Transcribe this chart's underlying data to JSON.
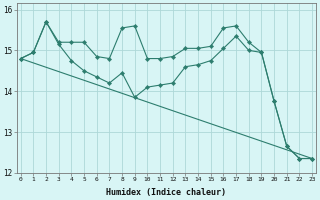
{
  "xlabel": "Humidex (Indice chaleur)",
  "bg_color": "#d8f5f5",
  "line_color": "#2d7d6e",
  "grid_color": "#aed8d8",
  "x": [
    0,
    1,
    2,
    3,
    4,
    5,
    6,
    7,
    8,
    9,
    10,
    11,
    12,
    13,
    14,
    15,
    16,
    17,
    18,
    19,
    20,
    21,
    22,
    23
  ],
  "series1": [
    14.8,
    14.95,
    15.7,
    15.2,
    15.2,
    15.2,
    14.85,
    14.8,
    15.55,
    15.6,
    14.8,
    14.8,
    14.85,
    15.05,
    15.05,
    15.1,
    15.55,
    15.6,
    15.2,
    14.95,
    13.75,
    12.65,
    12.35,
    12.35
  ],
  "series2": [
    14.8,
    14.95,
    15.7,
    15.15,
    14.75,
    14.5,
    14.35,
    14.2,
    14.45,
    13.85,
    14.1,
    14.15,
    14.2,
    14.6,
    14.65,
    14.75,
    15.05,
    15.35,
    15.0,
    14.95,
    13.75,
    12.65,
    12.35,
    12.35
  ],
  "series3_x": [
    0,
    23
  ],
  "series3_y": [
    14.8,
    12.35
  ],
  "ylim_min": 12,
  "ylim_max": 16.15,
  "yticks": [
    12,
    13,
    14,
    15,
    16
  ],
  "xticks": [
    0,
    1,
    2,
    3,
    4,
    5,
    6,
    7,
    8,
    9,
    10,
    11,
    12,
    13,
    14,
    15,
    16,
    17,
    18,
    19,
    20,
    21,
    22,
    23
  ]
}
